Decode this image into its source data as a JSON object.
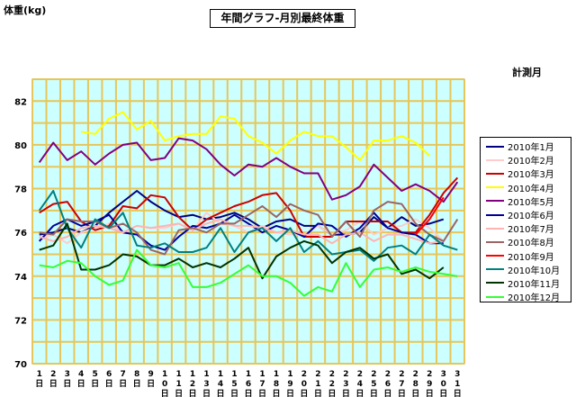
{
  "page": {
    "title": "年間グラフ-月別最終体重",
    "ylabel": "体重(kg)",
    "xlabel": "計測月"
  },
  "chart_data": {
    "type": "line",
    "title": "年間グラフ-月別最終体重",
    "ylabel": "体重(kg)",
    "xlabel": "計測月",
    "ylim": [
      70,
      83
    ],
    "yticks": [
      70,
      72,
      74,
      76,
      78,
      80,
      82
    ],
    "x": [
      1,
      2,
      3,
      4,
      5,
      6,
      7,
      8,
      9,
      10,
      11,
      12,
      13,
      14,
      15,
      16,
      17,
      18,
      19,
      20,
      21,
      22,
      23,
      24,
      25,
      26,
      27,
      28,
      29,
      30,
      31
    ],
    "x_tick_labels": [
      "1日",
      "2日",
      "3日",
      "4日",
      "5日",
      "6日",
      "7日",
      "8日",
      "9日",
      "10日",
      "11日",
      "12日",
      "13日",
      "14日",
      "15日",
      "16日",
      "17日",
      "18日",
      "19日",
      "20日",
      "21日",
      "22日",
      "23日",
      "24日",
      "25日",
      "26日",
      "27日",
      "28日",
      "29日",
      "30日",
      "31日"
    ],
    "grid": true,
    "plot_background": "#ccffff",
    "grid_color": "#e6c65a",
    "legend_position": "right",
    "series": [
      {
        "name": "2010年1月",
        "color": "#000080",
        "values": [
          75.9,
          76.0,
          76.2,
          76.0,
          76.3,
          76.9,
          77.4,
          77.9,
          77.4,
          77.0,
          76.7,
          76.8,
          76.6,
          76.7,
          76.9,
          76.6,
          76.2,
          76.5,
          76.6,
          76.3,
          76.3,
          75.9,
          75.9,
          76.0,
          76.7,
          76.2,
          76.7,
          76.3,
          76.4,
          76.6,
          null
        ]
      },
      {
        "name": "2010年2月",
        "color": "#ffcccc",
        "values": [
          75.7,
          75.9,
          75.5,
          76.0,
          76.2,
          76.4,
          76.0,
          76.3,
          76.2,
          76.2,
          76.4,
          76.1,
          76.9,
          76.4,
          76.3,
          76.0,
          76.3,
          76.0,
          75.9,
          75.9,
          76.3,
          75.9,
          76.1,
          76.5,
          75.9,
          76.2,
          76.3,
          76.6,
          76.2,
          75.6,
          null
        ]
      },
      {
        "name": "2010年3月",
        "color": "#cc0000",
        "values": [
          76.9,
          77.3,
          77.4,
          76.5,
          76.1,
          76.3,
          77.2,
          77.1,
          77.7,
          77.6,
          76.7,
          76.1,
          76.6,
          76.9,
          77.2,
          77.4,
          77.7,
          77.8,
          77.0,
          75.8,
          75.8,
          75.8,
          76.5,
          76.5,
          76.5,
          76.5,
          76.0,
          76.0,
          76.8,
          77.8,
          78.5
        ]
      },
      {
        "name": "2010年4月",
        "color": "#ffff00",
        "values": [
          null,
          null,
          null,
          80.6,
          80.5,
          81.2,
          81.5,
          80.7,
          81.1,
          80.2,
          80.4,
          80.5,
          80.5,
          81.3,
          81.2,
          80.4,
          80.1,
          79.6,
          80.2,
          80.6,
          80.4,
          80.4,
          79.9,
          79.3,
          80.2,
          80.2,
          80.4,
          80.1,
          79.5,
          null,
          null
        ]
      },
      {
        "name": "2010年5月",
        "color": "#800080",
        "values": [
          79.2,
          80.1,
          79.3,
          79.7,
          79.1,
          79.6,
          80.0,
          80.1,
          79.3,
          79.4,
          80.3,
          80.2,
          79.8,
          79.1,
          78.6,
          79.1,
          79.0,
          79.4,
          79.0,
          78.7,
          78.7,
          77.5,
          77.7,
          78.1,
          79.1,
          78.5,
          77.9,
          78.2,
          77.9,
          77.4,
          78.3
        ]
      },
      {
        "name": "2010年6月",
        "color": "#000099",
        "values": [
          75.6,
          76.3,
          76.6,
          76.3,
          76.5,
          76.8,
          76.0,
          75.9,
          75.4,
          75.2,
          75.8,
          76.3,
          76.2,
          76.4,
          76.8,
          76.4,
          76.0,
          76.3,
          76.1,
          75.8,
          76.4,
          76.3,
          75.8,
          76.2,
          76.9,
          76.2,
          76.0,
          75.9,
          75.5,
          75.5,
          null
        ]
      },
      {
        "name": "2010年7月",
        "color": "#ffb3b3",
        "values": [
          75.8,
          75.6,
          75.8,
          76.2,
          76.3,
          76.2,
          76.0,
          76.3,
          76.2,
          76.3,
          76.4,
          76.1,
          76.4,
          76.6,
          76.3,
          76.3,
          76.2,
          76.0,
          76.1,
          75.9,
          75.9,
          75.5,
          75.9,
          76.0,
          75.6,
          75.9,
          75.9,
          75.7,
          75.5,
          75.6,
          null
        ]
      },
      {
        "name": "2010年8月",
        "color": "#996666",
        "values": [
          76.0,
          75.9,
          76.6,
          76.5,
          76.5,
          76.2,
          76.4,
          76.0,
          75.2,
          75.0,
          76.1,
          76.2,
          76.0,
          76.4,
          76.4,
          76.8,
          77.2,
          76.7,
          77.3,
          77.0,
          76.8,
          75.8,
          76.5,
          75.8,
          77.0,
          77.4,
          77.3,
          76.4,
          75.9,
          75.6,
          76.6
        ]
      },
      {
        "name": "2010年9月",
        "color": "#ff0000",
        "values": [
          null,
          null,
          null,
          null,
          null,
          null,
          null,
          null,
          null,
          null,
          null,
          null,
          null,
          null,
          null,
          null,
          null,
          null,
          null,
          null,
          null,
          null,
          null,
          null,
          null,
          null,
          null,
          75.9,
          76.6,
          77.6,
          null
        ]
      },
      {
        "name": "2010年10月",
        "color": "#008080",
        "values": [
          77.0,
          77.9,
          76.2,
          75.3,
          76.6,
          76.2,
          76.9,
          75.4,
          75.3,
          75.5,
          75.1,
          75.1,
          75.3,
          76.2,
          75.1,
          76.0,
          76.2,
          75.6,
          76.2,
          75.1,
          75.6,
          75.0,
          75.1,
          75.2,
          74.7,
          75.3,
          75.4,
          75.0,
          75.9,
          75.4,
          75.2
        ]
      },
      {
        "name": "2010年11月",
        "color": "#003300",
        "values": [
          75.2,
          75.4,
          76.4,
          74.3,
          74.3,
          74.5,
          75.0,
          74.9,
          74.5,
          74.5,
          74.8,
          74.4,
          74.6,
          74.4,
          74.8,
          75.3,
          73.9,
          74.9,
          75.3,
          75.6,
          75.4,
          74.6,
          75.1,
          75.3,
          74.8,
          75.0,
          74.1,
          74.3,
          73.9,
          74.4,
          null
        ]
      },
      {
        "name": "2010年12月",
        "color": "#33ff33",
        "values": [
          74.5,
          74.4,
          74.7,
          74.6,
          74.0,
          73.6,
          73.8,
          75.2,
          74.5,
          74.4,
          74.6,
          73.5,
          73.5,
          73.7,
          74.1,
          74.5,
          74.0,
          74.0,
          73.7,
          73.1,
          73.5,
          73.3,
          74.6,
          73.5,
          74.3,
          74.4,
          74.2,
          74.4,
          74.2,
          74.1,
          74.0
        ]
      }
    ]
  }
}
